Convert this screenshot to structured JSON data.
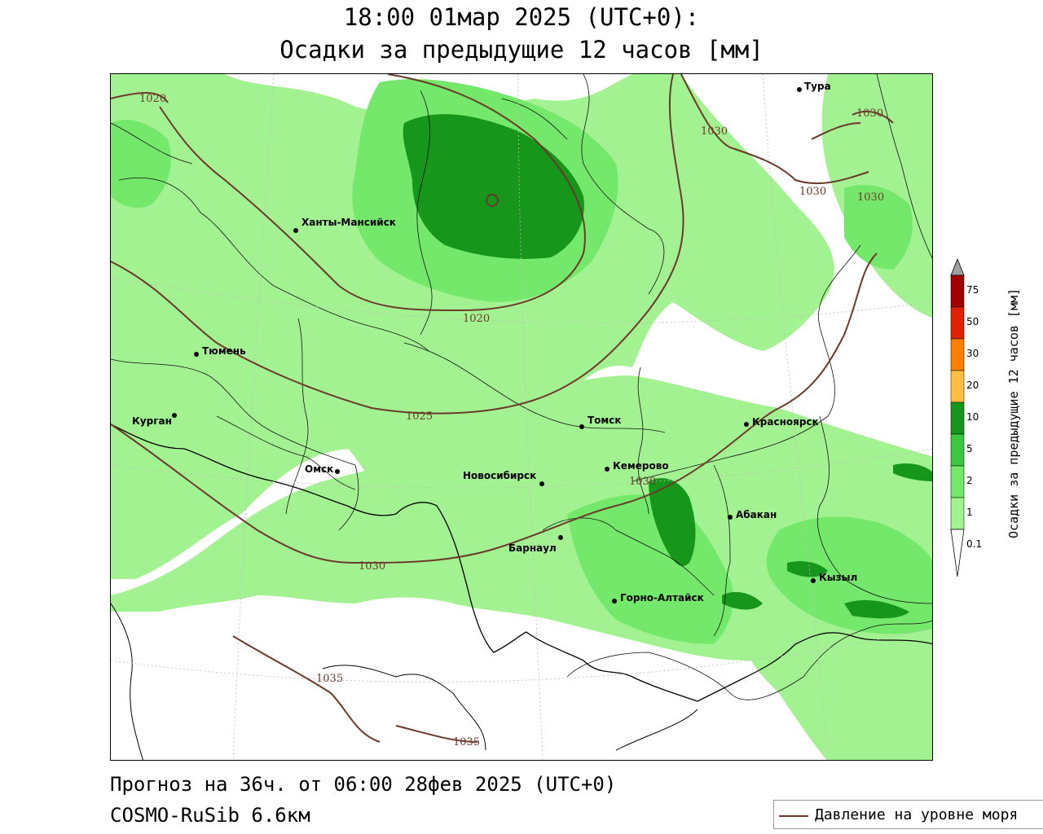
{
  "title": {
    "line1": "18:00 01мар 2025 (UTC+0):",
    "line2": "Осадки за предыдущие 12 часов [мм]"
  },
  "footer": {
    "forecast": "Прогноз на 36ч. от 06:00 28фев 2025 (UTC+0)",
    "model": "COSMO-RuSib 6.6км"
  },
  "legend": {
    "pressure_label": "Давление на уровне моря"
  },
  "colorbar": {
    "title": "Осадки за предыдущие 12 часов [мм]",
    "levels": [
      "0.1",
      "1",
      "2",
      "5",
      "10",
      "20",
      "30",
      "50",
      "75"
    ],
    "colors": [
      "#ffffff",
      "#a3f291",
      "#73e86a",
      "#3bc840",
      "#16961a",
      "#ffc040",
      "#ff8000",
      "#e02000",
      "#a00000",
      "#a0a0a0"
    ]
  },
  "cities": [
    {
      "name": "Тура"
    },
    {
      "name": "Ханты-Мансийск"
    },
    {
      "name": "Тюмень"
    },
    {
      "name": "Курган"
    },
    {
      "name": "Омск"
    },
    {
      "name": "Новосибирск"
    },
    {
      "name": "Томск"
    },
    {
      "name": "Красноярск"
    },
    {
      "name": "Кемерово"
    },
    {
      "name": "Абакан"
    },
    {
      "name": "Барнаул"
    },
    {
      "name": "Кызыл"
    },
    {
      "name": "Горно-Алтайск"
    }
  ],
  "isobars": [
    {
      "value": "1020"
    },
    {
      "value": "1020"
    },
    {
      "value": "1025"
    },
    {
      "value": "1030"
    },
    {
      "value": "1030"
    },
    {
      "value": "1030"
    },
    {
      "value": "1030"
    },
    {
      "value": "1030"
    },
    {
      "value": "1030"
    },
    {
      "value": "1035"
    },
    {
      "value": "1035"
    }
  ]
}
